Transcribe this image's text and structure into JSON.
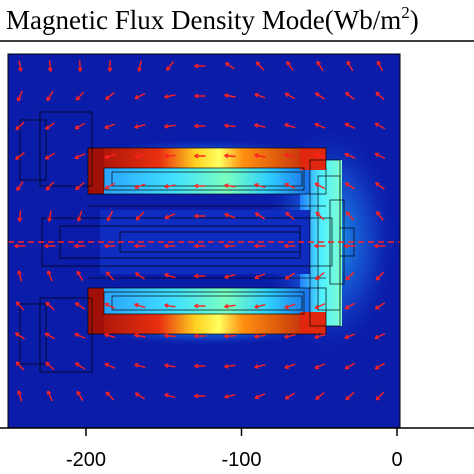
{
  "chart_data": {
    "type": "heatmap",
    "title": {
      "main": "Magnetic Flux Density Mode(Wb/m",
      "exponent": "2",
      "close": ")"
    },
    "xlabel": "",
    "ylabel": "",
    "xlim": [
      -255,
      0
    ],
    "x_ticks": [
      -200,
      -100,
      0
    ],
    "x_tick_labels": [
      "-200",
      "-100",
      "0"
    ],
    "colormap": "rainbow (blue low, red high)",
    "grid": false,
    "legend": "none",
    "overlay": "red arrow plot of flux density direction",
    "colors": {
      "background_field": "#0a1ca8",
      "high_field": "#c01010",
      "arrow": "#ff2020",
      "geometry_outline": "#000000"
    },
    "field_regions": [
      {
        "name": "upper magnet core",
        "level": 0.95
      },
      {
        "name": "lower magnet core",
        "level": 0.95
      },
      {
        "name": "inner gap",
        "level": 0.55
      },
      {
        "name": "right return yoke",
        "level": 0.5
      },
      {
        "name": "surrounding air",
        "level": 0.05
      }
    ]
  }
}
